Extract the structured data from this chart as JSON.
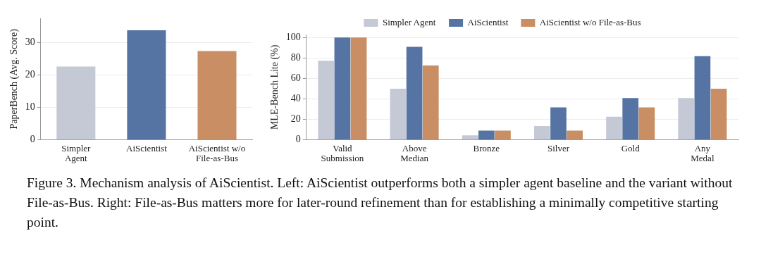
{
  "chart_data": [
    {
      "type": "bar",
      "ylabel": "PaperBench (Avg. Score)",
      "categories": [
        "Simpler Agent",
        "AiScientist",
        "AiScientist w/o File-as-Bus"
      ],
      "values": [
        22.6,
        33.8,
        27.4
      ],
      "colors": [
        "#c5c8d5",
        "#5574a3",
        "#c98e63"
      ],
      "ylim": [
        0,
        37.5
      ],
      "yticks": [
        0,
        10,
        20,
        30
      ],
      "grid": "y",
      "legend": false,
      "annotations": [
        "Figure 3. Mechanism analysis of AiScientist. Left: AiScientist outperforms both a simpler agent baseline and the variant without File-as-Bus. Right: File-as-Bus matters more for later-round refinement than for establishing a minimally competitive starting point."
      ]
    },
    {
      "type": "bar",
      "ylabel": "MLE-Bench Lite (%)",
      "categories": [
        "Valid Submission",
        "Above Median",
        "Bronze",
        "Silver",
        "Gold",
        "Any Medal"
      ],
      "series": [
        {
          "name": "Simpler Agent",
          "color": "#c5c8d5",
          "values": [
            77.3,
            50,
            4.5,
            13.6,
            22.7,
            40.9
          ]
        },
        {
          "name": "AiScientist",
          "color": "#5574a3",
          "values": [
            100,
            90.9,
            9.1,
            31.8,
            40.9,
            81.8
          ]
        },
        {
          "name": "AiScientist w/o File-as-Bus",
          "color": "#c98e63",
          "values": [
            100,
            72.7,
            9.1,
            9.1,
            31.8,
            50
          ]
        }
      ],
      "ylim": [
        0,
        103
      ],
      "yticks": [
        0,
        20,
        40,
        60,
        80,
        100
      ],
      "grid": "y",
      "legend": "top"
    }
  ]
}
